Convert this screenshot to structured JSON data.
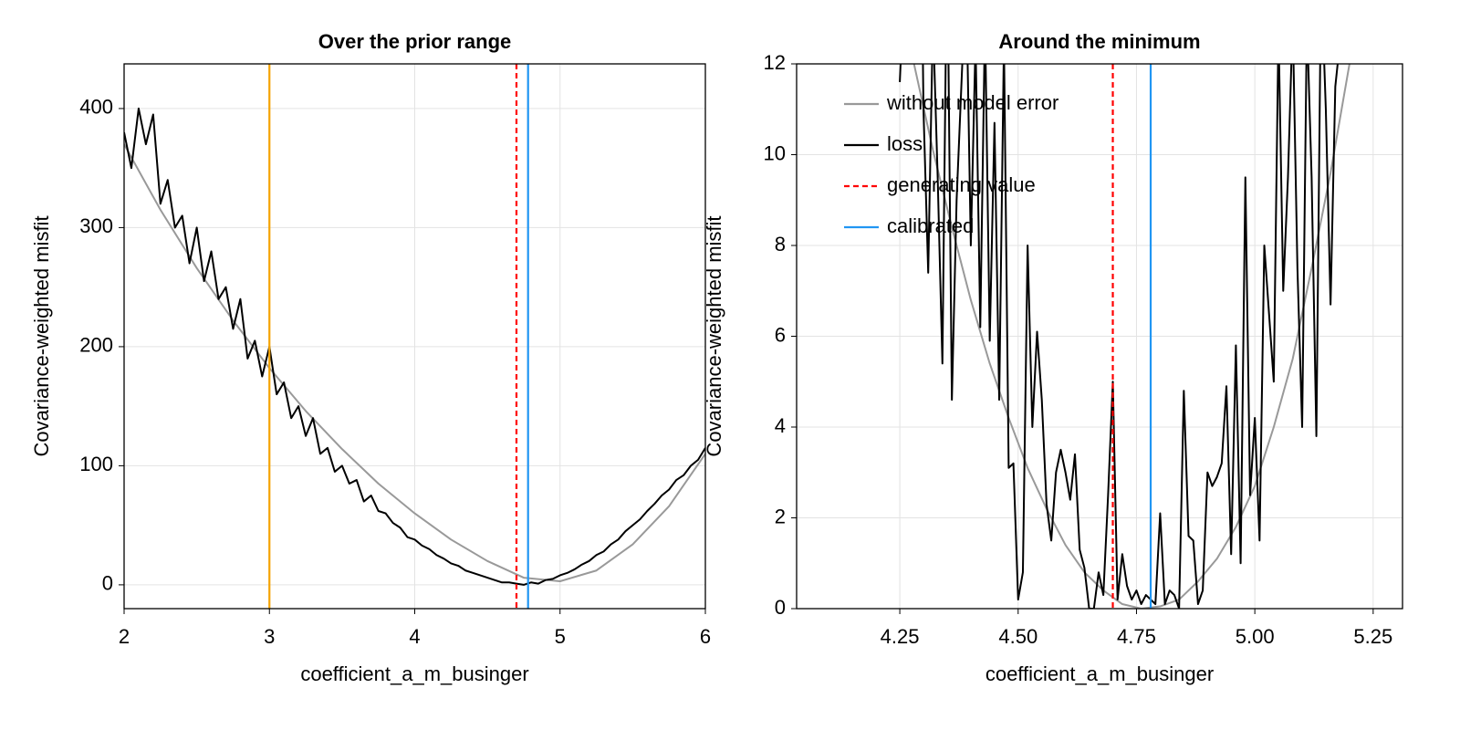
{
  "chart_data": [
    {
      "type": "line",
      "title": "Over the prior range",
      "x_label": "coefficient_a_m_businger",
      "y_label": "Covariance-weighted misfit",
      "xlim": [
        2,
        6
      ],
      "ylim": [
        -20,
        437.5
      ],
      "xticks": [
        2,
        3,
        4,
        5,
        6
      ],
      "yticks": [
        0,
        100,
        200,
        300,
        400
      ],
      "grid": true,
      "series": [
        {
          "color": "#999999",
          "x": [
            2,
            2.25,
            2.5,
            2.75,
            3,
            3.25,
            3.5,
            3.75,
            4,
            4.25,
            4.5,
            4.75,
            5,
            5.25,
            5.5,
            5.75,
            6
          ],
          "values": [
            370,
            315,
            266,
            222,
            182,
            146,
            114,
            85,
            60,
            38,
            20,
            6,
            3,
            12,
            34,
            66,
            110
          ]
        },
        {
          "color": "#000000",
          "x": [
            2,
            2.05,
            2.1,
            2.15,
            2.2,
            2.25,
            2.3,
            2.35,
            2.4,
            2.45,
            2.5,
            2.55,
            2.6,
            2.65,
            2.7,
            2.75,
            2.8,
            2.85,
            2.9,
            2.95,
            3,
            3.05,
            3.1,
            3.15,
            3.2,
            3.25,
            3.3,
            3.35,
            3.4,
            3.45,
            3.5,
            3.55,
            3.6,
            3.65,
            3.7,
            3.75,
            3.8,
            3.85,
            3.9,
            3.95,
            4,
            4.05,
            4.1,
            4.15,
            4.2,
            4.25,
            4.3,
            4.35,
            4.4,
            4.45,
            4.5,
            4.55,
            4.6,
            4.65,
            4.7,
            4.75,
            4.8,
            4.85,
            4.9,
            4.95,
            5,
            5.05,
            5.1,
            5.15,
            5.2,
            5.25,
            5.3,
            5.35,
            5.4,
            5.45,
            5.5,
            5.55,
            5.6,
            5.65,
            5.7,
            5.75,
            5.8,
            5.85,
            5.9,
            5.95,
            6
          ],
          "values": [
            380,
            350,
            400,
            370,
            395,
            320,
            340,
            300,
            310,
            270,
            300,
            255,
            280,
            240,
            250,
            215,
            240,
            190,
            205,
            175,
            200,
            160,
            170,
            140,
            150,
            125,
            140,
            110,
            115,
            95,
            100,
            85,
            88,
            70,
            75,
            62,
            60,
            52,
            48,
            40,
            38,
            33,
            30,
            25,
            22,
            18,
            16,
            12,
            10,
            8,
            6,
            4,
            2,
            2,
            1,
            0,
            2,
            1,
            4,
            5,
            8,
            10,
            13,
            17,
            20,
            25,
            28,
            34,
            38,
            45,
            50,
            55,
            62,
            68,
            75,
            80,
            88,
            92,
            100,
            105,
            115
          ]
        }
      ],
      "vlines": [
        {
          "x": 3,
          "color": "#f5a300"
        },
        {
          "x": 4.7,
          "color": "#ff0000",
          "dashed": true
        },
        {
          "x": 4.78,
          "color": "#2196f3"
        }
      ]
    },
    {
      "type": "line",
      "title": "Around the minimum",
      "x_label": "coefficient_a_m_businger",
      "y_label": "Covariance-weighted misfit",
      "xlim": [
        4.032,
        5.312
      ],
      "ylim": [
        0,
        12
      ],
      "xticks": [
        4.25,
        {
          "value": 4.5,
          "label": "4.50"
        },
        4.75,
        {
          "value": 5,
          "label": "5.00"
        },
        5.25
      ],
      "yticks": [
        0,
        2,
        4,
        6,
        8,
        10,
        12
      ],
      "grid": true,
      "legend": "top left",
      "series": [
        {
          "name": "without model error",
          "color": "#999999",
          "x": [
            4.28,
            4.32,
            4.36,
            4.4,
            4.44,
            4.48,
            4.52,
            4.56,
            4.6,
            4.64,
            4.68,
            4.72,
            4.76,
            4.8,
            4.84,
            4.88,
            4.92,
            4.96,
            5,
            5.04,
            5.08,
            5.12,
            5.16,
            5.2
          ],
          "values": [
            12,
            10.1,
            8.4,
            6.8,
            5.4,
            4.2,
            3.1,
            2.2,
            1.4,
            0.8,
            0.4,
            0.1,
            0,
            0.05,
            0.2,
            0.6,
            1.1,
            1.8,
            2.7,
            4,
            5.5,
            7.5,
            9.6,
            12
          ]
        },
        {
          "name": "loss",
          "color": "#000000",
          "x": [
            4.25,
            4.26,
            4.27,
            4.28,
            4.29,
            4.3,
            4.31,
            4.32,
            4.33,
            4.34,
            4.35,
            4.36,
            4.37,
            4.38,
            4.39,
            4.4,
            4.41,
            4.42,
            4.43,
            4.44,
            4.45,
            4.46,
            4.47,
            4.48,
            4.49,
            4.5,
            4.51,
            4.52,
            4.53,
            4.54,
            4.55,
            4.56,
            4.57,
            4.58,
            4.59,
            4.6,
            4.61,
            4.62,
            4.63,
            4.64,
            4.65,
            4.66,
            4.67,
            4.68,
            4.69,
            4.7,
            4.71,
            4.72,
            4.73,
            4.74,
            4.75,
            4.76,
            4.77,
            4.78,
            4.79,
            4.8,
            4.81,
            4.82,
            4.83,
            4.84,
            4.85,
            4.86,
            4.87,
            4.88,
            4.89,
            4.9,
            4.91,
            4.92,
            4.93,
            4.94,
            4.95,
            4.96,
            4.97,
            4.98,
            4.99,
            5,
            5.01,
            5.02,
            5.03,
            5.04,
            5.05,
            5.06,
            5.07,
            5.08,
            5.09,
            5.1,
            5.11,
            5.12,
            5.13,
            5.14,
            5.15,
            5.16,
            5.17,
            5.18,
            5.19
          ],
          "values": [
            11.6,
            14,
            18,
            13,
            20,
            11,
            7.4,
            13,
            9.5,
            5.4,
            15,
            4.6,
            9,
            11.5,
            14,
            8,
            12.5,
            6.2,
            13,
            5.9,
            10.7,
            4.6,
            12.5,
            3.1,
            3.2,
            0.2,
            0.8,
            8,
            4,
            6.1,
            4.6,
            2.3,
            1.5,
            3,
            3.5,
            3,
            2.4,
            3.4,
            1.3,
            0.9,
            0,
            0,
            0.8,
            0.3,
            2.5,
            5,
            0.2,
            1.2,
            0.5,
            0.2,
            0.4,
            0.1,
            0.3,
            0.2,
            0.1,
            2.1,
            0.1,
            0.4,
            0.3,
            0,
            4.8,
            1.6,
            1.5,
            0.1,
            0.4,
            3,
            2.7,
            2.9,
            3.2,
            4.9,
            1.2,
            5.8,
            1,
            9.5,
            2.5,
            4.2,
            1.5,
            8,
            6.5,
            5,
            12.8,
            7,
            9.5,
            13,
            7.5,
            4,
            13,
            9.5,
            3.8,
            14,
            11,
            6.7,
            11.5,
            12.5,
            13
          ]
        }
      ],
      "vlines": [
        {
          "name": "generating value",
          "x": 4.7,
          "color": "#ff0000",
          "dashed": true
        },
        {
          "name": "calibrated",
          "x": 4.78,
          "color": "#2196f3"
        }
      ]
    }
  ]
}
